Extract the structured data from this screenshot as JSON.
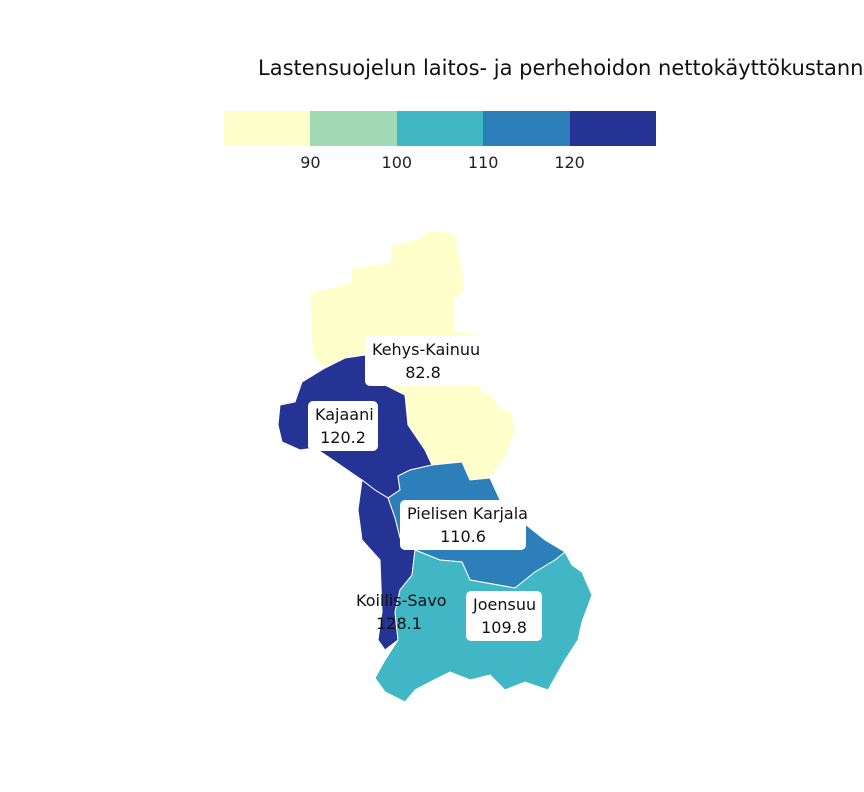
{
  "title": "Lastensuojelun laitos- ja perhehoidon nettokäyttökustannu",
  "legend": {
    "colors": [
      "#ffffcc",
      "#a1dab4",
      "#41b6c4",
      "#2c7fb8",
      "#253494"
    ],
    "ticks": [
      "90",
      "100",
      "110",
      "120"
    ]
  },
  "regions": [
    {
      "id": "kehys-kainuu",
      "name": "Kehys-Kainuu",
      "value": "82.8",
      "color": "#ffffcc"
    },
    {
      "id": "kajaani",
      "name": "Kajaani",
      "value": "120.2",
      "color": "#253494"
    },
    {
      "id": "pielisen-karjala",
      "name": "Pielisen Karjala",
      "value": "110.6",
      "color": "#2c7fb8"
    },
    {
      "id": "koillis-savo",
      "name": "Koillis-Savo",
      "value": "128.1",
      "color": "#253494"
    },
    {
      "id": "joensuu",
      "name": "Joensuu",
      "value": "109.8",
      "color": "#41b6c4"
    }
  ]
}
